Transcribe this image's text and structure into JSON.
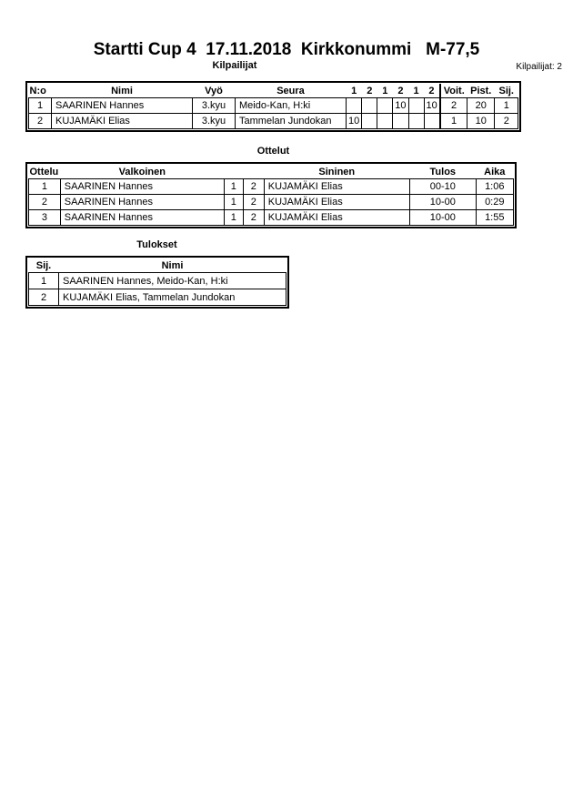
{
  "page": {
    "title": "Startti Cup 4  17.11.2018  Kirkkonummi   M-77,5",
    "competitors_count_label": "Kilpailijat: 2"
  },
  "kilpailijat": {
    "section_title": "Kilpailijat",
    "headers": {
      "no": "N:o",
      "nimi": "Nimi",
      "vyo": "Vyö",
      "seura": "Seura",
      "score_cols": [
        "1",
        "2",
        "1",
        "2",
        "1",
        "2"
      ],
      "voit": "Voit.",
      "pist": "Pist.",
      "sij": "Sij."
    },
    "rows": [
      {
        "no": "1",
        "nimi": "SAARINEN Hannes",
        "vyo": "3.kyu",
        "seura": "Meido-Kan, H:ki",
        "scores": [
          "",
          "",
          "",
          "10",
          "",
          "10"
        ],
        "voit": "2",
        "pist": "20",
        "sij": "1"
      },
      {
        "no": "2",
        "nimi": "KUJAMÄKI Elias",
        "vyo": "3.kyu",
        "seura": "Tammelan Jundokan",
        "scores": [
          "10",
          "",
          "",
          "",
          "",
          ""
        ],
        "voit": "1",
        "pist": "10",
        "sij": "2"
      }
    ]
  },
  "ottelut": {
    "section_title": "Ottelut",
    "headers": {
      "ottelu": "Ottelu",
      "valkoinen": "Valkoinen",
      "sininen": "Sininen",
      "tulos": "Tulos",
      "aika": "Aika"
    },
    "rows": [
      {
        "no": "1",
        "valkoinen": "SAARINEN Hannes",
        "w_no": "1",
        "b_no": "2",
        "sininen": "KUJAMÄKI Elias",
        "tulos": "00-10",
        "aika": "1:06"
      },
      {
        "no": "2",
        "valkoinen": "SAARINEN Hannes",
        "w_no": "1",
        "b_no": "2",
        "sininen": "KUJAMÄKI Elias",
        "tulos": "10-00",
        "aika": "0:29"
      },
      {
        "no": "3",
        "valkoinen": "SAARINEN Hannes",
        "w_no": "1",
        "b_no": "2",
        "sininen": "KUJAMÄKI Elias",
        "tulos": "10-00",
        "aika": "1:55"
      }
    ]
  },
  "tulokset": {
    "section_title": "Tulokset",
    "headers": {
      "sij": "Sij.",
      "nimi": "Nimi"
    },
    "rows": [
      {
        "sij": "1",
        "nimi": "SAARINEN Hannes, Meido-Kan, H:ki"
      },
      {
        "sij": "2",
        "nimi": "KUJAMÄKI Elias, Tammelan Jundokan"
      }
    ]
  }
}
